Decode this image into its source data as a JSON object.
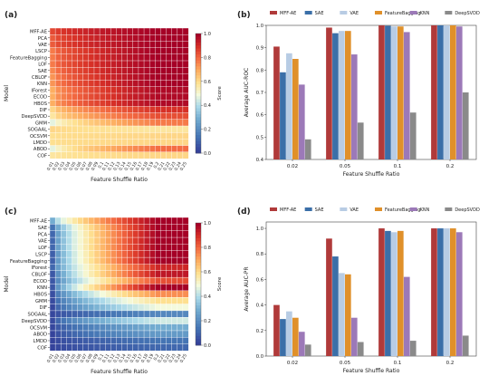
{
  "chart_data": [
    {
      "type": "heatmap",
      "panel_label": "(a)",
      "xlabel": "Feature Shuffle Ratio",
      "ylabel": "Model",
      "x_ticks": [
        "0.01",
        "0.02",
        "0.03",
        "0.04",
        "0.05",
        "0.06",
        "0.07",
        "0.08",
        "0.09",
        "0.1",
        "0.11",
        "0.12",
        "0.13",
        "0.14",
        "0.15",
        "0.16",
        "0.17",
        "0.18",
        "0.19",
        "0.2",
        "0.21",
        "0.22",
        "0.23",
        "0.24",
        "0.25"
      ],
      "rows": [
        "MFF-AE",
        "PCA",
        "VAE",
        "LSCP",
        "FeatureBagging",
        "LOF",
        "SAE",
        "CBLOF",
        "KNN",
        "IForest",
        "ECOD",
        "HBOS",
        "DIF",
        "DeepSVDD",
        "GMM",
        "SOGAAL",
        "OCSVM",
        "LMDD",
        "ABOD",
        "COF"
      ],
      "row_start_values": [
        0.86,
        0.83,
        0.83,
        0.78,
        0.78,
        0.78,
        0.76,
        0.74,
        0.74,
        0.7,
        0.7,
        0.7,
        0.62,
        0.58,
        0.48,
        0.62,
        0.6,
        0.6,
        0.48,
        0.58
      ],
      "row_end_values": [
        1.0,
        1.0,
        1.0,
        1.0,
        1.0,
        1.0,
        1.0,
        1.0,
        1.0,
        0.98,
        0.98,
        0.98,
        0.9,
        0.85,
        0.78,
        0.58,
        0.62,
        0.62,
        0.8,
        0.62
      ],
      "colorbar": {
        "label": "Score",
        "range": [
          0,
          1
        ],
        "ticks": [
          "0.0",
          "0.2",
          "0.4",
          "0.6",
          "0.8",
          "1.0"
        ]
      }
    },
    {
      "type": "bar",
      "panel_label": "(b)",
      "categories": [
        "0.02",
        "0.05",
        "0.1",
        "0.2"
      ],
      "xlabel": "Feature Shuffle Ratio",
      "ylabel": "Average AUC-ROC",
      "ylim": [
        0.4,
        1.0
      ],
      "yticks": [
        "0.4",
        "0.5",
        "0.6",
        "0.7",
        "0.8",
        "0.9",
        "1.0"
      ],
      "series": [
        {
          "name": "MFF-AE",
          "color": "#b03a3a",
          "values": [
            0.905,
            0.99,
            1.0,
            1.0
          ]
        },
        {
          "name": "SAE",
          "color": "#3b6fa8",
          "values": [
            0.79,
            0.965,
            0.998,
            1.0
          ]
        },
        {
          "name": "VAE",
          "color": "#b8cce4",
          "values": [
            0.875,
            0.975,
            0.995,
            1.0
          ]
        },
        {
          "name": "FeatureBagging",
          "color": "#e0902a",
          "values": [
            0.85,
            0.975,
            0.995,
            1.0
          ]
        },
        {
          "name": "KNN",
          "color": "#9c79b8",
          "values": [
            0.735,
            0.87,
            0.97,
            0.995
          ]
        },
        {
          "name": "DeepSVDD",
          "color": "#8a8a8a",
          "values": [
            0.49,
            0.565,
            0.61,
            0.7
          ]
        }
      ]
    },
    {
      "type": "heatmap",
      "panel_label": "(c)",
      "xlabel": "Feature Shuffle Ratio",
      "ylabel": "Model",
      "x_ticks": [
        "0.01",
        "0.02",
        "0.03",
        "0.04",
        "0.05",
        "0.06",
        "0.07",
        "0.08",
        "0.09",
        "0.1",
        "0.11",
        "0.12",
        "0.13",
        "0.14",
        "0.15",
        "0.16",
        "0.17",
        "0.18",
        "0.19",
        "0.2",
        "0.21",
        "0.22",
        "0.23",
        "0.24",
        "0.25"
      ],
      "rows": [
        "MFF-AE",
        "SAE",
        "PCA",
        "VAE",
        "LOF",
        "LSCP",
        "FeatureBagging",
        "IForest",
        "CBLOF",
        "ECOD",
        "KNN",
        "HBOS",
        "GMM",
        "DIF",
        "SOGAAL",
        "DeepSVDD",
        "OCSVM",
        "ABOD",
        "LMDD",
        "COF"
      ],
      "row_start_values": [
        0.3,
        0.15,
        0.12,
        0.12,
        0.12,
        0.1,
        0.1,
        0.12,
        0.08,
        0.08,
        0.08,
        0.06,
        0.05,
        0.04,
        0.04,
        0.05,
        0.04,
        0.03,
        0.03,
        0.03
      ],
      "row_end_values": [
        1.0,
        1.0,
        1.0,
        1.0,
        1.0,
        1.0,
        1.0,
        0.92,
        0.95,
        0.85,
        1.0,
        0.75,
        0.6,
        0.5,
        0.2,
        0.45,
        0.3,
        0.25,
        0.15,
        0.12
      ],
      "colorbar": {
        "label": "Score",
        "range": [
          0,
          1
        ],
        "ticks": [
          "0.0",
          "0.2",
          "0.4",
          "0.6",
          "0.8",
          "1.0"
        ]
      }
    },
    {
      "type": "bar",
      "panel_label": "(d)",
      "categories": [
        "0.02",
        "0.05",
        "0.1",
        "0.2"
      ],
      "xlabel": "Feature Shuffle Ratio",
      "ylabel": "Average AUC-PR",
      "ylim": [
        0.0,
        1.05
      ],
      "yticks": [
        "0.0",
        "0.2",
        "0.4",
        "0.6",
        "0.8",
        "1.0"
      ],
      "series": [
        {
          "name": "MFF-AE",
          "color": "#b03a3a",
          "values": [
            0.4,
            0.92,
            1.0,
            1.0
          ]
        },
        {
          "name": "SAE",
          "color": "#3b6fa8",
          "values": [
            0.29,
            0.78,
            0.98,
            1.0
          ]
        },
        {
          "name": "VAE",
          "color": "#b8cce4",
          "values": [
            0.35,
            0.65,
            0.97,
            1.0
          ]
        },
        {
          "name": "FeatureBagging",
          "color": "#e0902a",
          "values": [
            0.3,
            0.64,
            0.98,
            1.0
          ]
        },
        {
          "name": "KNN",
          "color": "#9c79b8",
          "values": [
            0.19,
            0.3,
            0.62,
            0.97
          ]
        },
        {
          "name": "DeepSVDD",
          "color": "#8a8a8a",
          "values": [
            0.09,
            0.11,
            0.12,
            0.16
          ]
        }
      ]
    }
  ]
}
